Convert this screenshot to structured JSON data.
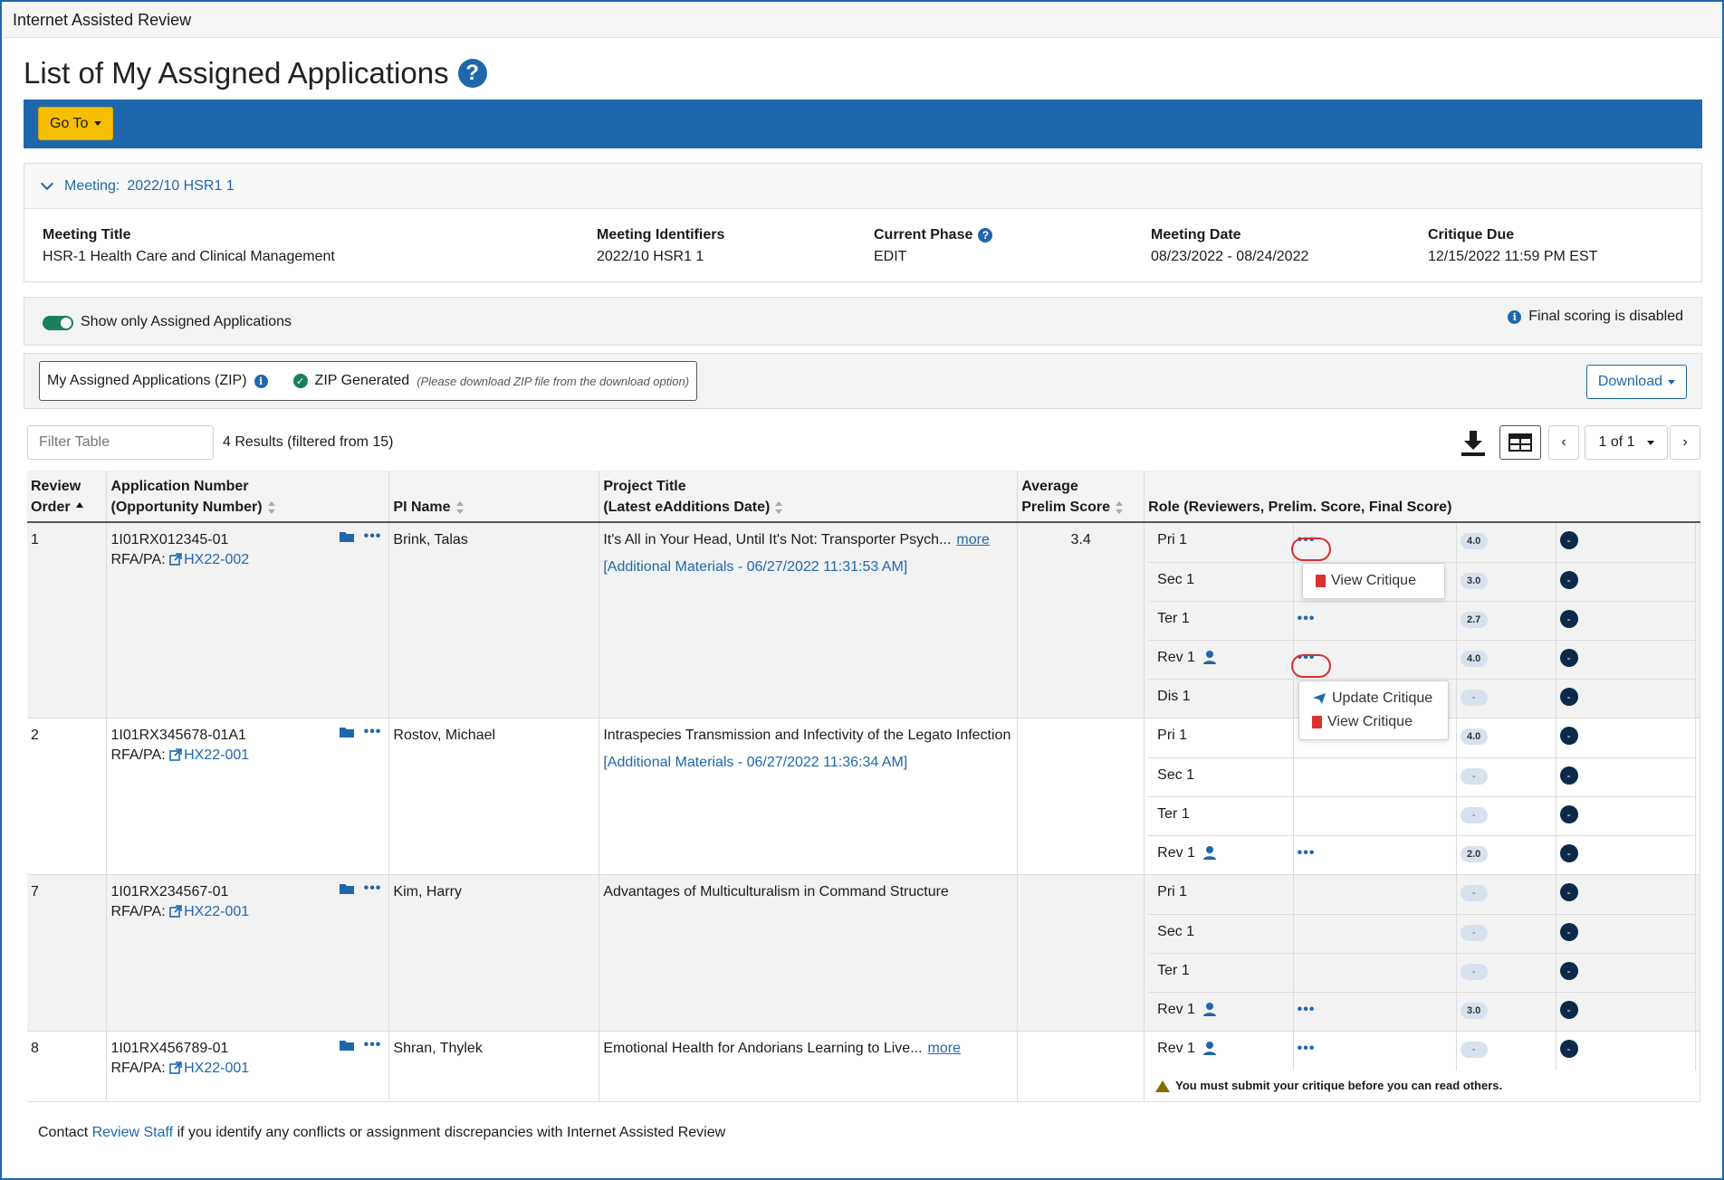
{
  "app": {
    "title": "Internet Assisted Review"
  },
  "page": {
    "title": "List of My Assigned Applications",
    "help_glyph": "?"
  },
  "toolbar": {
    "goto_label": "Go To"
  },
  "meeting": {
    "header_label": "Meeting:",
    "header_value": "2022/10 HSR1 1",
    "fields": [
      {
        "label": "Meeting Title",
        "value": "HSR-1 Health Care and Clinical Management"
      },
      {
        "label": "Meeting Identifiers",
        "value": "2022/10 HSR1 1"
      },
      {
        "label": "Current Phase",
        "value": "EDIT"
      },
      {
        "label": "Meeting Date",
        "value": "08/23/2022 - 08/24/2022"
      },
      {
        "label": "Critique Due",
        "value": "12/15/2022 11:59 PM EST"
      }
    ]
  },
  "filters": {
    "show_only_label": "Show only Assigned Applications",
    "show_only_on": true,
    "final_scoring_note": "Final scoring is disabled"
  },
  "zip": {
    "label": "My Assigned Applications (ZIP)",
    "status": "ZIP Generated",
    "note": "(Please download ZIP file from the download option)",
    "download_label": "Download"
  },
  "table_controls": {
    "filter_placeholder": "Filter Table",
    "results_text": "4 Results (filtered from 15)",
    "page_text": "1 of 1"
  },
  "columns": {
    "review_order": [
      "Review",
      "Order"
    ],
    "app_number": [
      "Application Number",
      "(Opportunity Number)"
    ],
    "pi_name": "PI Name",
    "project_title": [
      "Project Title",
      "(Latest eAdditions Date)"
    ],
    "avg_score": [
      "Average",
      "Prelim Score"
    ],
    "role": "Role (Reviewers, Prelim. Score, Final Score)"
  },
  "rows": [
    {
      "order": "1",
      "app_number": "1I01RX012345-01",
      "rfa_label": "RFA/PA:",
      "rfa": "HX22-002",
      "pi": "Brink, Talas",
      "title": "It's All in Your Head, Until It's Not: Transporter Psych...",
      "more": "more",
      "additional": "[Additional Materials - 06/27/2022 11:31:53 AM]",
      "avg": "3.4",
      "roles": [
        {
          "name": "Pri 1",
          "dots": true,
          "score": "4.0",
          "final": "-"
        },
        {
          "name": "Sec 1",
          "dots": false,
          "score": "3.0",
          "final": "-"
        },
        {
          "name": "Ter 1",
          "dots": true,
          "score": "2.7",
          "final": "-"
        },
        {
          "name": "Rev 1",
          "person": true,
          "dots": true,
          "score": "4.0",
          "final": "-"
        },
        {
          "name": "Dis 1",
          "dots": false,
          "score": "-",
          "final": "-"
        }
      ]
    },
    {
      "order": "2",
      "app_number": "1I01RX345678-01A1",
      "rfa_label": "RFA/PA:",
      "rfa": "HX22-001",
      "pi": "Rostov, Michael",
      "title": "Intraspecies Transmission and Infectivity of the Legato Infection",
      "more": "",
      "additional": "[Additional Materials - 06/27/2022 11:36:34 AM]",
      "avg": "",
      "roles": [
        {
          "name": "Pri 1",
          "dots": false,
          "score": "4.0",
          "final": "-"
        },
        {
          "name": "Sec 1",
          "dots": false,
          "score": "-",
          "final": "-"
        },
        {
          "name": "Ter 1",
          "dots": false,
          "score": "-",
          "final": "-"
        },
        {
          "name": "Rev 1",
          "person": true,
          "dots": true,
          "score": "2.0",
          "final": "-"
        }
      ]
    },
    {
      "order": "7",
      "app_number": "1I01RX234567-01",
      "rfa_label": "RFA/PA:",
      "rfa": "HX22-001",
      "pi": "Kim, Harry",
      "title": "Advantages of Multiculturalism in Command Structure",
      "more": "",
      "additional": "",
      "avg": "",
      "roles": [
        {
          "name": "Pri 1",
          "dots": false,
          "score": "-",
          "final": "-"
        },
        {
          "name": "Sec 1",
          "dots": false,
          "score": "-",
          "final": "-"
        },
        {
          "name": "Ter 1",
          "dots": false,
          "score": "-",
          "final": "-"
        },
        {
          "name": "Rev 1",
          "person": true,
          "dots": true,
          "score": "3.0",
          "final": "-"
        }
      ]
    },
    {
      "order": "8",
      "app_number": "1I01RX456789-01",
      "rfa_label": "RFA/PA:",
      "rfa": "HX22-001",
      "pi": "Shran, Thylek",
      "title": "Emotional Health for Andorians Learning to Live...",
      "more": "more",
      "additional": "",
      "avg": "",
      "roles": [
        {
          "name": "Rev 1",
          "person": true,
          "dots": true,
          "score": "-",
          "final": "-"
        }
      ],
      "warning": "You must submit your critique before you can read others."
    }
  ],
  "popups": {
    "first": {
      "items": [
        "View Critique"
      ]
    },
    "second": {
      "items": [
        "Update Critique",
        "View Critique"
      ]
    }
  },
  "footer": {
    "before": "Contact ",
    "link": "Review Staff",
    "after": " if you identify any conflicts or assignment discrepancies with Internet Assisted Review"
  },
  "colors": {
    "primary": "#1f67ad",
    "goto": "#f6be00",
    "toggle_on": "#1a7f5a",
    "highlight_oval": "#d93030",
    "final_dot": "#0b2a4a"
  }
}
